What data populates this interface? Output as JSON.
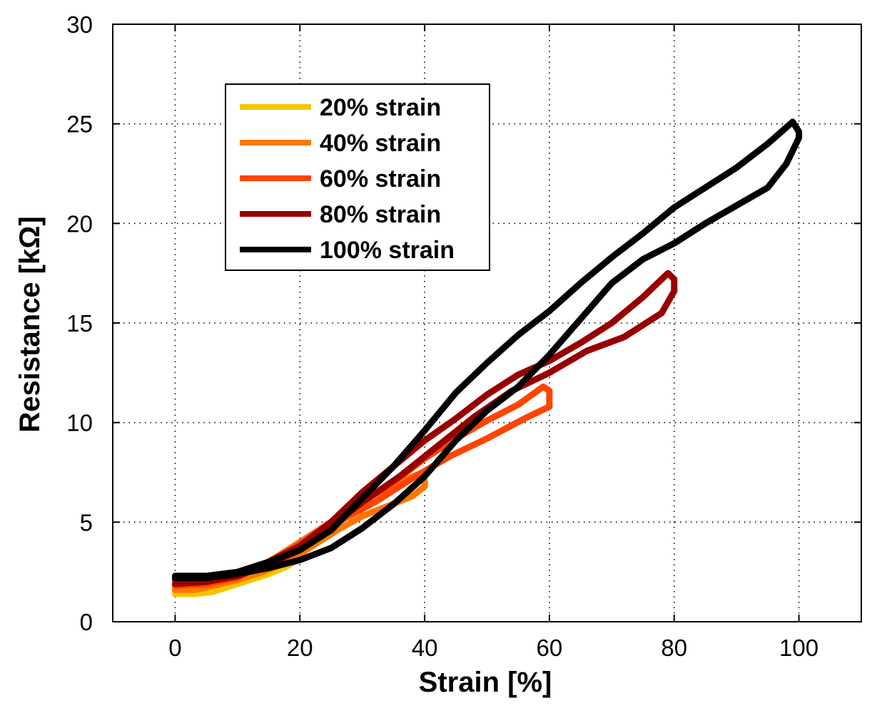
{
  "chart_data": {
    "type": "line",
    "title": "",
    "xlabel": "Strain [%]",
    "ylabel": "Resistance [kΩ]",
    "xlim": [
      -10,
      110
    ],
    "ylim": [
      0,
      30
    ],
    "xticks": [
      0,
      20,
      40,
      60,
      80,
      100
    ],
    "yticks": [
      0,
      5,
      10,
      15,
      20,
      25,
      30
    ],
    "grid": true,
    "legend_position": "upper-left",
    "series": [
      {
        "name": "20% strain",
        "color": "#F5C600",
        "x": [
          0,
          3,
          6,
          9,
          12,
          15,
          18,
          20,
          20,
          18,
          15,
          12,
          9,
          6,
          3,
          0
        ],
        "y": [
          1.5,
          1.5,
          1.7,
          2.0,
          2.5,
          3.0,
          3.3,
          3.4,
          3.2,
          2.8,
          2.4,
          2.1,
          1.8,
          1.5,
          1.4,
          1.4
        ]
      },
      {
        "name": "40% strain",
        "color": "#FF7700",
        "x": [
          0,
          4,
          8,
          12,
          16,
          20,
          24,
          28,
          32,
          36,
          39,
          40,
          40,
          38,
          34,
          30,
          26,
          22,
          18,
          14,
          10,
          6,
          3,
          0
        ],
        "y": [
          1.8,
          1.8,
          2.0,
          2.5,
          3.2,
          4.0,
          4.8,
          5.7,
          6.4,
          7.0,
          7.4,
          7.1,
          6.8,
          6.3,
          5.8,
          5.3,
          4.6,
          3.8,
          3.0,
          2.5,
          2.1,
          1.8,
          1.6,
          1.6
        ]
      },
      {
        "name": "60% strain",
        "color": "#FF4400",
        "x": [
          0,
          5,
          10,
          15,
          20,
          25,
          30,
          35,
          40,
          45,
          50,
          55,
          59,
          60,
          60,
          56,
          50,
          44,
          38,
          32,
          26,
          20,
          15,
          10,
          5,
          0
        ],
        "y": [
          1.9,
          1.9,
          2.2,
          3.0,
          3.9,
          5.0,
          6.0,
          7.0,
          8.2,
          9.2,
          10.1,
          10.9,
          11.8,
          11.6,
          10.8,
          10.2,
          9.2,
          8.3,
          7.2,
          6.0,
          5.0,
          3.8,
          3.0,
          2.4,
          1.9,
          1.8
        ]
      },
      {
        "name": "80% strain",
        "color": "#990000",
        "x": [
          0,
          5,
          10,
          15,
          20,
          25,
          30,
          35,
          40,
          45,
          50,
          55,
          60,
          65,
          70,
          75,
          79,
          80,
          80,
          78,
          72,
          66,
          60,
          54,
          48,
          42,
          36,
          30,
          25,
          20,
          15,
          10,
          5,
          0
        ],
        "y": [
          2.1,
          2.1,
          2.3,
          3.0,
          3.8,
          5.0,
          6.5,
          7.8,
          9.1,
          10.2,
          11.4,
          12.4,
          13.1,
          14.0,
          15.0,
          16.3,
          17.5,
          17.2,
          16.6,
          15.5,
          14.3,
          13.6,
          12.5,
          11.6,
          10.3,
          8.8,
          7.3,
          6.0,
          4.8,
          3.6,
          2.9,
          2.3,
          2.0,
          1.9
        ]
      },
      {
        "name": "100% strain",
        "color": "#000000",
        "x": [
          0,
          5,
          10,
          15,
          20,
          25,
          30,
          35,
          40,
          45,
          50,
          55,
          60,
          65,
          70,
          75,
          80,
          85,
          90,
          95,
          99,
          100,
          100,
          98,
          95,
          90,
          85,
          80,
          75,
          70,
          65,
          60,
          55,
          50,
          45,
          40,
          35,
          30,
          25,
          20,
          15,
          10,
          5,
          0
        ],
        "y": [
          2.3,
          2.3,
          2.5,
          3.0,
          3.6,
          4.6,
          6.2,
          7.8,
          9.6,
          11.5,
          13.0,
          14.4,
          15.6,
          17.0,
          18.3,
          19.5,
          20.8,
          21.8,
          22.8,
          24.0,
          25.1,
          24.6,
          24.3,
          23.0,
          21.8,
          20.9,
          20.0,
          19.0,
          18.2,
          17.0,
          15.2,
          13.4,
          11.8,
          10.6,
          9.1,
          7.3,
          5.9,
          4.7,
          3.7,
          3.1,
          2.7,
          2.4,
          2.2,
          2.2
        ]
      }
    ]
  }
}
